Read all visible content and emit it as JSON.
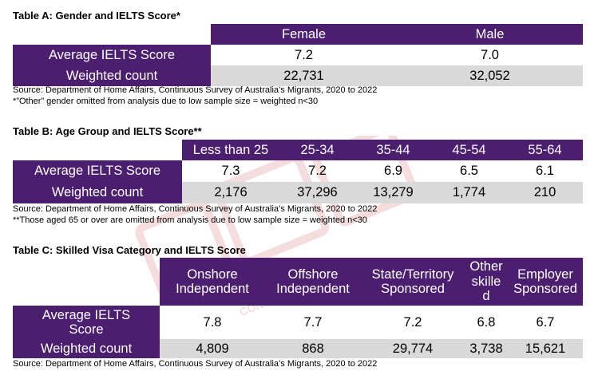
{
  "tableA": {
    "title": "Table A: Gender and IELTS Score*",
    "headers": [
      "Female",
      "Male"
    ],
    "rows": [
      {
        "label": "Average IELTS Score",
        "values": [
          "7.2",
          "7.0"
        ]
      },
      {
        "label": "Weighted count",
        "values": [
          "22,731",
          "32,052"
        ]
      }
    ],
    "source": "Source: Department of Home Affairs, Continuous Survey of Australia’s Migrants, 2020 to 2022",
    "footnote": "*”Other” gender omitted from analysis due to low sample size = weighted n<30"
  },
  "tableB": {
    "title": "Table B: Age Group and IELTS Score**",
    "headers": [
      "Less than 25",
      "25-34",
      "35-44",
      "45-54",
      "55-64"
    ],
    "rows": [
      {
        "label": "Average IELTS Score",
        "values": [
          "7.3",
          "7.2",
          "6.9",
          "6.5",
          "6.1"
        ]
      },
      {
        "label": "Weighted count",
        "values": [
          "2,176",
          "37,296",
          "13,279",
          "1,774",
          "210"
        ]
      }
    ],
    "source": "Source: Department of Home Affairs, Continuous Survey of Australia’s Migrants, 2020 to 2022",
    "footnote": "**Those aged 65 or over are omitted from analysis due to low sample size = weighted n<30"
  },
  "tableC": {
    "title": "Table C: Skilled Visa Category and IELTS Score",
    "headers": [
      [
        "Onshore",
        "Independent"
      ],
      [
        "Offshore",
        "Independent"
      ],
      [
        "State/Territory",
        "Sponsored"
      ],
      [
        "Other",
        "skille",
        "d"
      ],
      [
        "Employer",
        "Sponsored"
      ]
    ],
    "rows": [
      {
        "label": [
          "Average IELTS",
          "Score"
        ],
        "values": [
          "7.8",
          "7.7",
          "7.2",
          "6.8",
          "6.7"
        ]
      },
      {
        "label": [
          "Weighted count"
        ],
        "values": [
          "4,809",
          "868",
          "29,774",
          "3,738",
          "15,621"
        ]
      }
    ],
    "source": "Source: Department of Home Affairs, Continuous Survey of Australia’s Migrants, 2020 to 2022"
  },
  "watermark": {
    "text_cn": "",
    "text_en": "CONSULTANTS",
    "color": "#d9534f"
  },
  "colors": {
    "header_bg": "#4b1e70",
    "row_alt_bg": "#d9d9d9"
  }
}
